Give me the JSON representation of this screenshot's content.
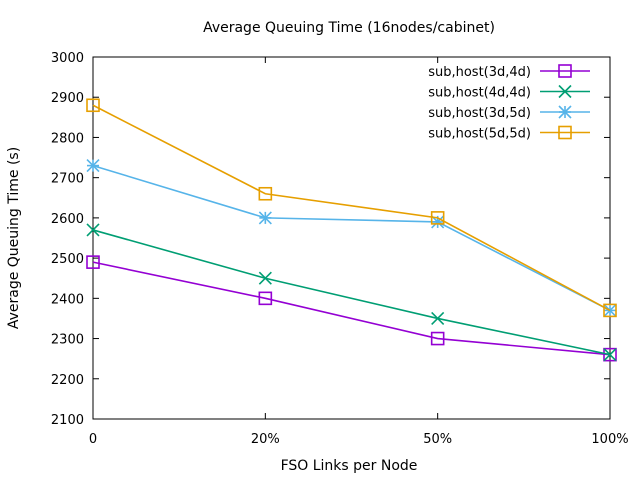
{
  "chart_data": {
    "type": "line",
    "title": "Average Queuing Time (16nodes/cabinet)",
    "xlabel": "FSO Links per Node",
    "ylabel": "Average Queuing Time (s)",
    "categories": [
      "0",
      "20%",
      "50%",
      "100%"
    ],
    "ylim": [
      2100,
      3000
    ],
    "yticks": [
      2100,
      2200,
      2300,
      2400,
      2500,
      2600,
      2700,
      2800,
      2900,
      3000
    ],
    "grid": false,
    "legend_position": "top-right",
    "series": [
      {
        "name": "sub,host(3d,4d)",
        "values": [
          2490,
          2400,
          2300,
          2260
        ],
        "color": "#9400d3",
        "marker": "square"
      },
      {
        "name": "sub,host(4d,4d)",
        "values": [
          2570,
          2450,
          2350,
          2260
        ],
        "color": "#009e73",
        "marker": "x"
      },
      {
        "name": "sub,host(3d,5d)",
        "values": [
          2730,
          2600,
          2590,
          2370
        ],
        "color": "#56b4e9",
        "marker": "asterisk"
      },
      {
        "name": "sub,host(5d,5d)",
        "values": [
          2880,
          2660,
          2600,
          2370
        ],
        "color": "#e69f00",
        "marker": "square"
      }
    ]
  }
}
